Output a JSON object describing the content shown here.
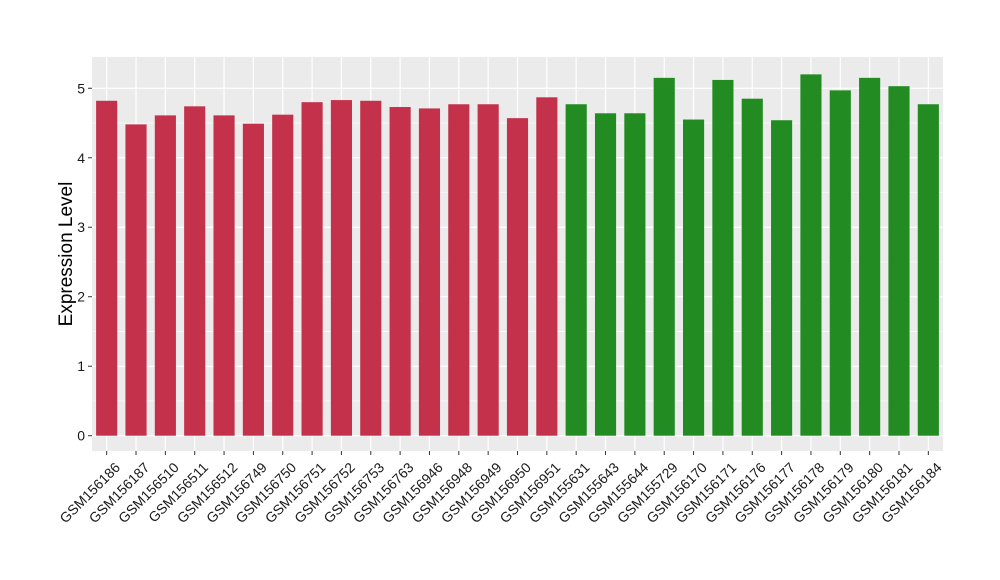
{
  "chart_data": {
    "type": "bar",
    "title": "",
    "xlabel": "",
    "ylabel": "Expression Level",
    "ylim": [
      -0.22,
      5.45
    ],
    "yticks": [
      0,
      1,
      2,
      3,
      4,
      5
    ],
    "grid": true,
    "legend": "none",
    "background": "#ebebeb",
    "group_colors": {
      "group1": "#c3314b",
      "group2": "#228b22"
    },
    "categories": [
      "GSM156186",
      "GSM156187",
      "GSM156510",
      "GSM156511",
      "GSM156512",
      "GSM156749",
      "GSM156750",
      "GSM156751",
      "GSM156752",
      "GSM156753",
      "GSM156763",
      "GSM156946",
      "GSM156948",
      "GSM156949",
      "GSM156950",
      "GSM156951",
      "GSM155631",
      "GSM155643",
      "GSM155644",
      "GSM155729",
      "GSM156170",
      "GSM156171",
      "GSM156176",
      "GSM156177",
      "GSM156178",
      "GSM156179",
      "GSM156180",
      "GSM156181",
      "GSM156184"
    ],
    "values": [
      4.82,
      4.48,
      4.61,
      4.74,
      4.61,
      4.49,
      4.62,
      4.8,
      4.83,
      4.82,
      4.73,
      4.71,
      4.77,
      4.77,
      4.57,
      4.87,
      4.77,
      4.64,
      4.64,
      5.15,
      4.55,
      5.12,
      4.85,
      4.54,
      5.2,
      4.97,
      5.15,
      5.03,
      4.77
    ],
    "groups": [
      "group1",
      "group1",
      "group1",
      "group1",
      "group1",
      "group1",
      "group1",
      "group1",
      "group1",
      "group1",
      "group1",
      "group1",
      "group1",
      "group1",
      "group1",
      "group1",
      "group2",
      "group2",
      "group2",
      "group2",
      "group2",
      "group2",
      "group2",
      "group2",
      "group2",
      "group2",
      "group2",
      "group2",
      "group2"
    ]
  }
}
